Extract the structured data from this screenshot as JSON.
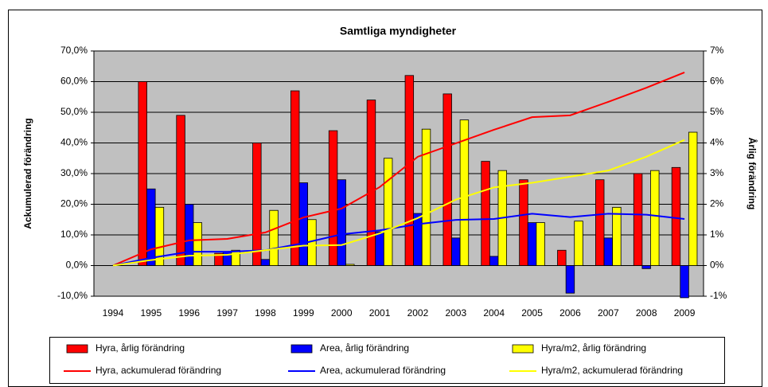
{
  "chart_data": {
    "type": "bar",
    "title": "Samtliga myndigheter",
    "ylabel": "Ackumulerad förändring",
    "y2label": "Årlig förändring",
    "categories": [
      "1994",
      "1995",
      "1996",
      "1997",
      "1998",
      "1999",
      "2000",
      "2001",
      "2002",
      "2003",
      "2004",
      "2005",
      "2006",
      "2007",
      "2008",
      "2009"
    ],
    "ylim": [
      -10,
      70
    ],
    "yticks": [
      {
        "value": -10,
        "label": "-10,0%"
      },
      {
        "value": 0,
        "label": "0,0%"
      },
      {
        "value": 10,
        "label": "10,0%"
      },
      {
        "value": 20,
        "label": "20,0%"
      },
      {
        "value": 30,
        "label": "30,0%"
      },
      {
        "value": 40,
        "label": "40,0%"
      },
      {
        "value": 50,
        "label": "50,0%"
      },
      {
        "value": 60,
        "label": "60,0%"
      },
      {
        "value": 70,
        "label": "70,0%"
      }
    ],
    "y2lim": [
      -1,
      7
    ],
    "y2ticks": [
      {
        "value": -1,
        "label": "-1%"
      },
      {
        "value": 0,
        "label": "0%"
      },
      {
        "value": 1,
        "label": "1%"
      },
      {
        "value": 2,
        "label": "2%"
      },
      {
        "value": 3,
        "label": "3%"
      },
      {
        "value": 4,
        "label": "4%"
      },
      {
        "value": 5,
        "label": "5%"
      },
      {
        "value": 6,
        "label": "6%"
      },
      {
        "value": 7,
        "label": "7%"
      }
    ],
    "grid": true,
    "series": [
      {
        "name": "Hyra, årlig förändring",
        "type": "bar",
        "axis": "y2",
        "color": "#ff0000",
        "values": [
          null,
          6.0,
          4.9,
          0.4,
          4.0,
          5.7,
          4.4,
          5.4,
          6.2,
          5.6,
          3.4,
          2.8,
          0.5,
          2.8,
          3.0,
          3.2
        ]
      },
      {
        "name": "Area, årlig förändring",
        "type": "bar",
        "axis": "y2",
        "color": "#0000ff",
        "values": [
          null,
          2.5,
          2.0,
          0.45,
          0.2,
          2.7,
          2.8,
          1.1,
          1.7,
          0.9,
          0.3,
          1.4,
          -0.9,
          0.9,
          -0.1,
          -1.05
        ]
      },
      {
        "name": "Hyra/m2, årlig förändring",
        "type": "bar",
        "axis": "y2",
        "color": "#ffff00",
        "values": [
          null,
          1.9,
          1.4,
          0.5,
          1.8,
          1.5,
          0.04,
          3.5,
          4.45,
          4.75,
          3.1,
          1.4,
          1.45,
          1.9,
          3.1,
          4.35
        ]
      },
      {
        "name": "Hyra, ackumulerad förändring",
        "type": "line",
        "color": "#ff0000",
        "values": [
          0,
          5.3,
          8.2,
          8.7,
          10.8,
          15.7,
          18.6,
          25.6,
          35.5,
          39.9,
          44.3,
          48.4,
          49,
          53.4,
          58,
          63
        ]
      },
      {
        "name": "Area, ackumulerad förändring",
        "type": "line",
        "color": "#0000ff",
        "values": [
          0,
          2.5,
          4.5,
          4.5,
          5.0,
          7.3,
          10.2,
          11.5,
          13.5,
          14.9,
          15.2,
          16.9,
          15.8,
          16.9,
          16.6,
          15.2
        ]
      },
      {
        "name": "Hyra/m2, ackumulerad förändring",
        "type": "line",
        "color": "#ffff00",
        "values": [
          0,
          1.8,
          3.2,
          3.5,
          5.0,
          6.5,
          6.7,
          10.5,
          15.5,
          21.5,
          25.5,
          27,
          29,
          31,
          35.5,
          41
        ]
      }
    ]
  }
}
